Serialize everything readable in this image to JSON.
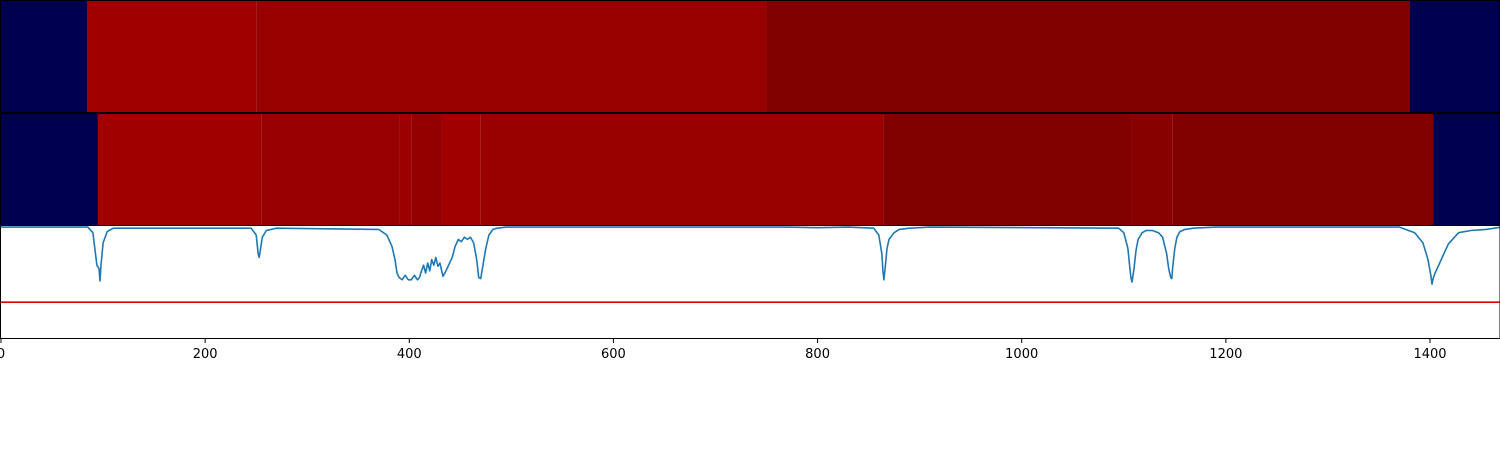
{
  "chart_data": [
    {
      "type": "heatmap",
      "segments": [
        {
          "start": 0,
          "end": 85,
          "color": "#000050"
        },
        {
          "start": 85,
          "end": 250,
          "color": "#a00000"
        },
        {
          "start": 250,
          "end": 750,
          "color": "#980000"
        },
        {
          "start": 750,
          "end": 1380,
          "color": "#800000"
        },
        {
          "start": 1380,
          "end": 1470,
          "color": "#000050"
        }
      ]
    },
    {
      "type": "heatmap",
      "segments": [
        {
          "start": 0,
          "end": 95,
          "color": "#000050"
        },
        {
          "start": 95,
          "end": 255,
          "color": "#a00000"
        },
        {
          "start": 255,
          "end": 390,
          "color": "#960000"
        },
        {
          "start": 390,
          "end": 402,
          "color": "#9c0000"
        },
        {
          "start": 402,
          "end": 432,
          "color": "#940000"
        },
        {
          "start": 432,
          "end": 470,
          "color": "#a00000"
        },
        {
          "start": 470,
          "end": 865,
          "color": "#990000"
        },
        {
          "start": 865,
          "end": 1108,
          "color": "#800000"
        },
        {
          "start": 1108,
          "end": 1148,
          "color": "#880000"
        },
        {
          "start": 1148,
          "end": 1403,
          "color": "#800000"
        },
        {
          "start": 1403,
          "end": 1470,
          "color": "#000050"
        }
      ]
    },
    {
      "type": "line",
      "xlim": [
        0,
        1470
      ],
      "ylim": [
        -1.0,
        0.0
      ],
      "threshold": -0.68,
      "threshold_color": "#e00000",
      "line_color": "#1f77b4",
      "x": [
        0,
        85,
        90,
        94,
        96,
        97,
        98,
        100,
        104,
        110,
        245,
        250,
        252,
        253,
        254,
        256,
        260,
        270,
        370,
        378,
        383,
        386,
        388,
        390,
        393,
        396,
        399,
        402,
        405,
        408,
        410,
        412,
        414,
        416,
        418,
        420,
        422,
        424,
        426,
        428,
        430,
        433,
        436,
        439,
        442,
        445,
        448,
        451,
        454,
        457,
        460,
        463,
        466,
        468,
        470,
        472,
        475,
        478,
        482,
        486,
        495,
        770,
        800,
        830,
        855,
        860,
        863,
        864,
        865,
        866,
        868,
        870,
        875,
        880,
        890,
        910,
        1095,
        1100,
        1104,
        1106,
        1107,
        1108,
        1110,
        1112,
        1114,
        1118,
        1122,
        1128,
        1134,
        1138,
        1142,
        1144,
        1146,
        1147,
        1148,
        1150,
        1152,
        1155,
        1160,
        1168,
        1190,
        1370,
        1385,
        1393,
        1398,
        1401,
        1402,
        1403,
        1405,
        1408,
        1412,
        1418,
        1428,
        1440,
        1455,
        1470
      ],
      "y": [
        -0.01,
        -0.01,
        -0.06,
        -0.35,
        -0.38,
        -0.49,
        -0.35,
        -0.15,
        -0.05,
        -0.02,
        -0.02,
        -0.08,
        -0.25,
        -0.28,
        -0.22,
        -0.1,
        -0.04,
        -0.02,
        -0.03,
        -0.08,
        -0.18,
        -0.3,
        -0.42,
        -0.46,
        -0.48,
        -0.44,
        -0.48,
        -0.48,
        -0.44,
        -0.48,
        -0.46,
        -0.4,
        -0.35,
        -0.42,
        -0.33,
        -0.4,
        -0.3,
        -0.35,
        -0.28,
        -0.36,
        -0.33,
        -0.45,
        -0.4,
        -0.34,
        -0.28,
        -0.18,
        -0.12,
        -0.14,
        -0.1,
        -0.12,
        -0.1,
        -0.15,
        -0.3,
        -0.46,
        -0.47,
        -0.36,
        -0.2,
        -0.08,
        -0.03,
        -0.02,
        -0.01,
        -0.01,
        -0.015,
        -0.01,
        -0.02,
        -0.08,
        -0.25,
        -0.4,
        -0.48,
        -0.4,
        -0.2,
        -0.12,
        -0.06,
        -0.03,
        -0.02,
        -0.01,
        -0.02,
        -0.06,
        -0.2,
        -0.38,
        -0.46,
        -0.5,
        -0.38,
        -0.22,
        -0.12,
        -0.06,
        -0.04,
        -0.04,
        -0.06,
        -0.1,
        -0.25,
        -0.38,
        -0.46,
        -0.47,
        -0.36,
        -0.2,
        -0.1,
        -0.05,
        -0.03,
        -0.02,
        -0.01,
        -0.01,
        -0.06,
        -0.15,
        -0.3,
        -0.45,
        -0.52,
        -0.47,
        -0.42,
        -0.36,
        -0.28,
        -0.16,
        -0.06,
        -0.04,
        -0.03,
        -0.01
      ],
      "x_ticks": [
        "0",
        "200",
        "400",
        "600",
        "800",
        "1000",
        "1200",
        "1400"
      ]
    }
  ]
}
